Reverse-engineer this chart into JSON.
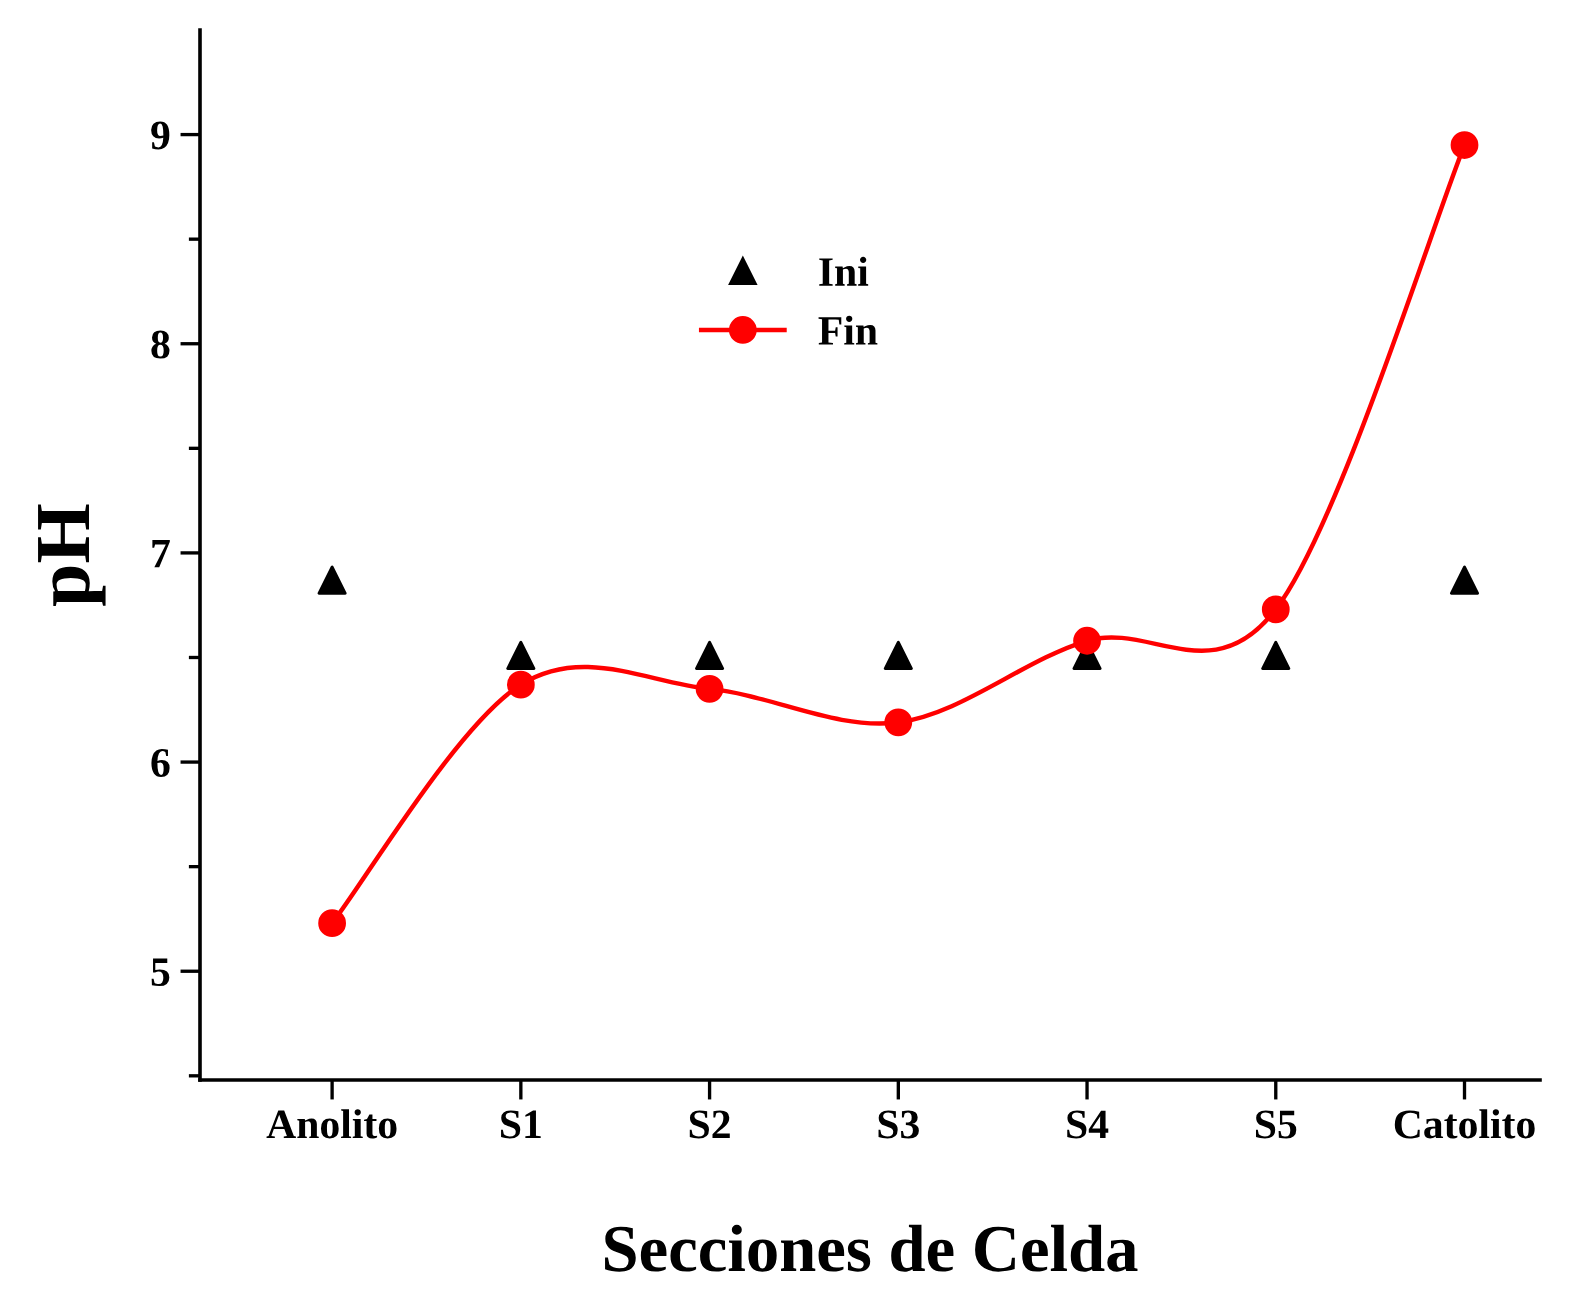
{
  "chart_data": {
    "type": "line",
    "xlabel": "Secciones de Celda",
    "ylabel": "pH",
    "categories": [
      "Anolito",
      "S1",
      "S2",
      "S3",
      "S4",
      "S5",
      "Catolito"
    ],
    "series": [
      {
        "name": "Ini",
        "type": "scatter",
        "marker": "triangle",
        "color": "#000000",
        "values": [
          6.87,
          6.51,
          6.51,
          6.51,
          6.51,
          6.51,
          6.87
        ]
      },
      {
        "name": "Fin",
        "marker": "circle",
        "color": "#ff0000",
        "values": [
          5.23,
          6.37,
          6.35,
          6.19,
          6.58,
          6.73,
          8.95
        ]
      }
    ],
    "ylim": [
      4.48,
      9.5
    ],
    "yticks": [
      5,
      6,
      7,
      8,
      9
    ],
    "grid": false,
    "legend": "top center"
  }
}
